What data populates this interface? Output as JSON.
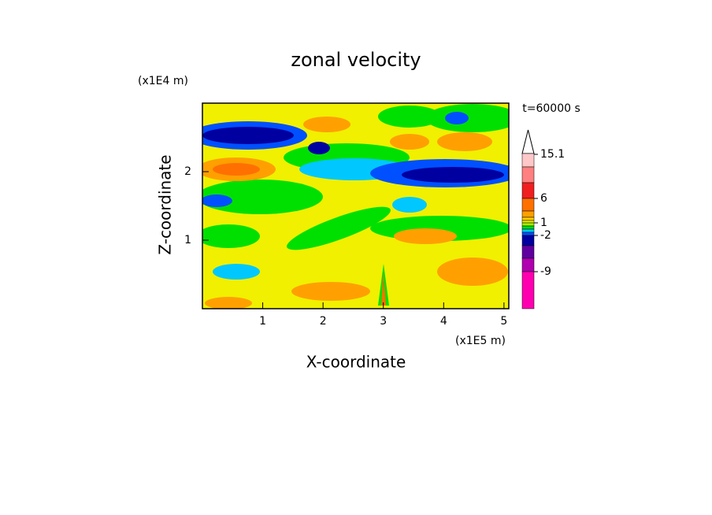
{
  "chart_data": {
    "type": "contour",
    "title": "zonal velocity",
    "x_label": "X-coordinate",
    "y_label": "Z-coordinate",
    "x_unit": "(x1E5 m)",
    "y_unit": "(x1E4 m)",
    "annotation": "t=60000 s",
    "xlim": [
      0,
      5.08
    ],
    "xticks": [
      1,
      2,
      3,
      4,
      5
    ],
    "ylim": [
      0,
      3
    ],
    "yticks": [
      1,
      2
    ],
    "colorbar": {
      "colors": [
        "#ffc8c8",
        "#ff8080",
        "#f02020",
        "#ff7000",
        "#ffa000",
        "#ffd000",
        "#f0f000",
        "#a0f000",
        "#00e000",
        "#00c8ff",
        "#0050ff",
        "#0000a0",
        "#6000a0",
        "#b000b0",
        "#ff00b0"
      ],
      "ticks": [
        15.1,
        6,
        1,
        -2,
        -9
      ]
    }
  }
}
